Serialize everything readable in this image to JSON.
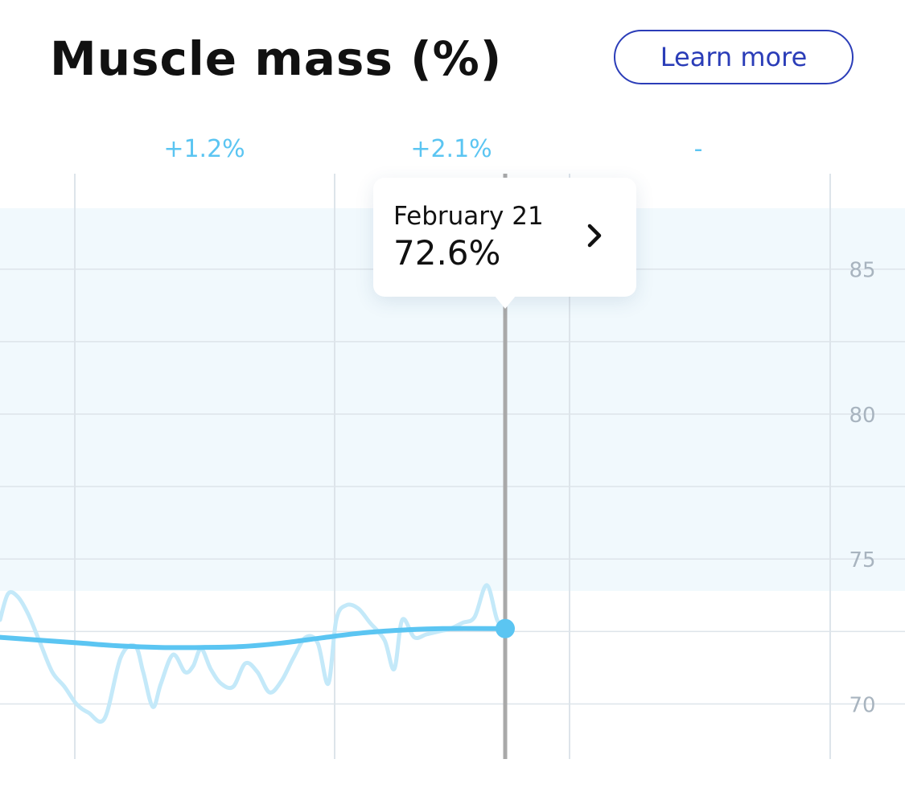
{
  "header": {
    "title": "Muscle mass (%)",
    "learn_more_label": "Learn more"
  },
  "tooltip": {
    "date": "February 21",
    "value": "72.6%"
  },
  "colors": {
    "accent": "#5bc5f2",
    "trend_line": "#5bc5f2",
    "raw_line": "#c4e9f9",
    "band": "#f1f9fd",
    "grid": "#dde4ea",
    "cursor": "#a9a9a9",
    "button": "#2b3db8",
    "tick_label": "#a8b4bf"
  },
  "icons": {
    "tooltip_arrow": "chevron-right-icon"
  },
  "chart_data": {
    "type": "line",
    "title": "Muscle mass (%)",
    "period_changes": [
      "+1.2%",
      "+2.1%",
      "-"
    ],
    "y_ticks": [
      85,
      80,
      75,
      70
    ],
    "ylim": [
      68.1,
      87.1
    ],
    "target_band": [
      73.9,
      87.1
    ],
    "selected_point": {
      "label": "February 21",
      "value": 72.6
    },
    "series": [
      {
        "kind": "trend",
        "x": [
          0,
          50,
          100,
          150,
          200,
          250,
          300,
          350,
          400,
          450,
          500,
          550,
          628
        ],
        "values": [
          72.3,
          72.2,
          72.1,
          72.0,
          71.95,
          71.95,
          71.98,
          72.1,
          72.28,
          72.45,
          72.55,
          72.6,
          72.6
        ]
      },
      {
        "kind": "raw",
        "x": [
          0,
          10,
          22,
          35,
          50,
          65,
          80,
          95,
          110,
          130,
          150,
          168,
          178,
          190,
          200,
          215,
          230,
          240,
          250,
          262,
          275,
          290,
          305,
          320,
          335,
          350,
          365,
          380,
          395,
          408,
          418,
          430,
          445,
          460,
          478,
          490,
          500,
          515,
          530,
          545,
          560,
          575,
          590,
          605,
          618,
          628
        ],
        "values": [
          72.9,
          73.8,
          73.7,
          73.1,
          72.1,
          71.1,
          70.6,
          70.0,
          69.7,
          69.5,
          71.6,
          72.0,
          71.1,
          69.9,
          70.7,
          71.7,
          71.1,
          71.3,
          71.9,
          71.2,
          70.7,
          70.6,
          71.4,
          71.1,
          70.4,
          70.8,
          71.6,
          72.3,
          72.1,
          70.7,
          72.9,
          73.4,
          73.3,
          72.8,
          72.2,
          71.2,
          72.9,
          72.3,
          72.4,
          72.5,
          72.6,
          72.8,
          73.0,
          74.1,
          72.9,
          72.6
        ]
      }
    ]
  }
}
